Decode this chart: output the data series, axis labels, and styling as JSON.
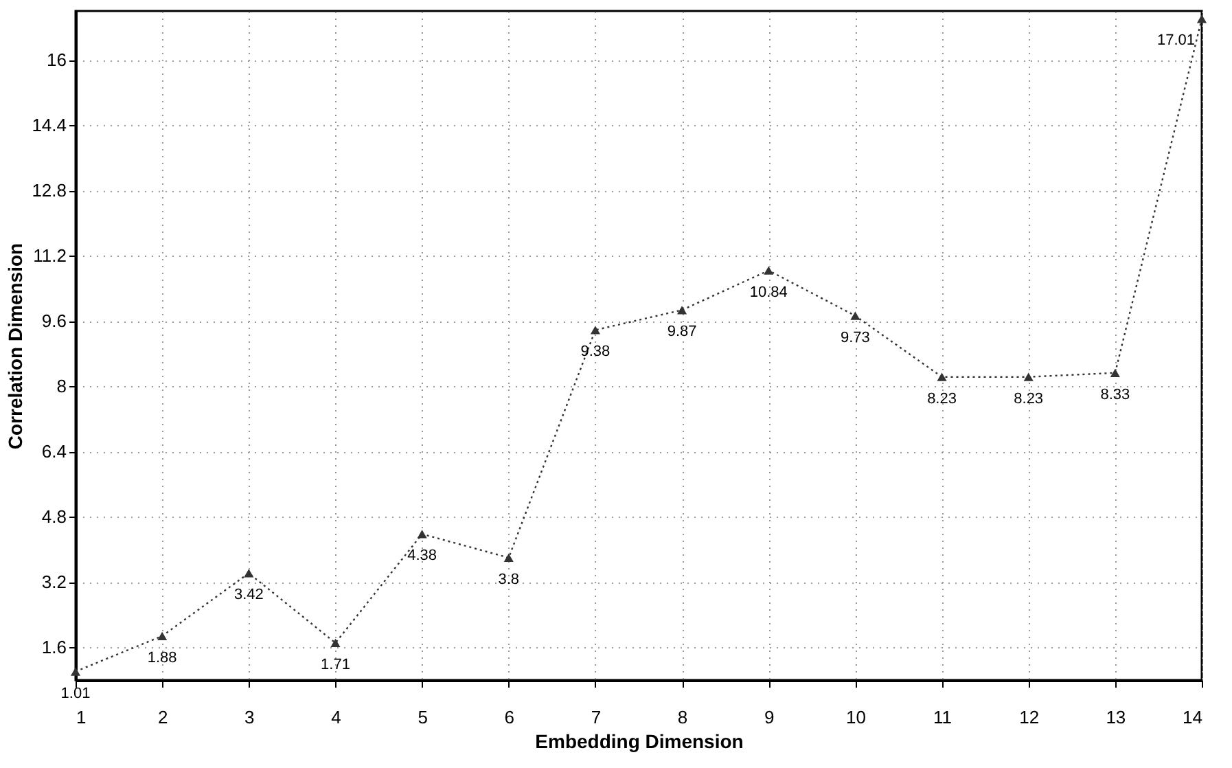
{
  "chart_data": {
    "type": "line",
    "xlabel": "Embedding Dimension",
    "ylabel": "Correlation Dimension",
    "x": [
      1,
      2,
      3,
      4,
      5,
      6,
      7,
      8,
      9,
      10,
      11,
      12,
      13,
      14
    ],
    "series": [
      {
        "color": "#333333",
        "values": [
          1.01,
          1.88,
          3.42,
          1.71,
          4.38,
          3.8,
          9.38,
          9.87,
          10.84,
          9.73,
          8.23,
          8.23,
          8.33,
          17.01
        ]
      }
    ],
    "xlim": [
      1,
      14
    ],
    "xticks": [
      1,
      2,
      3,
      4,
      5,
      6,
      7,
      8,
      9,
      10,
      11,
      12,
      13,
      14
    ],
    "ylim": [
      0.8,
      17.2
    ],
    "yticks": [
      1.6,
      3.2,
      4.8,
      6.4,
      8,
      9.6,
      11.2,
      12.8,
      14.4,
      16
    ],
    "grid": true,
    "marker": "triangle",
    "line_style": "dotted",
    "data_labels": true
  }
}
